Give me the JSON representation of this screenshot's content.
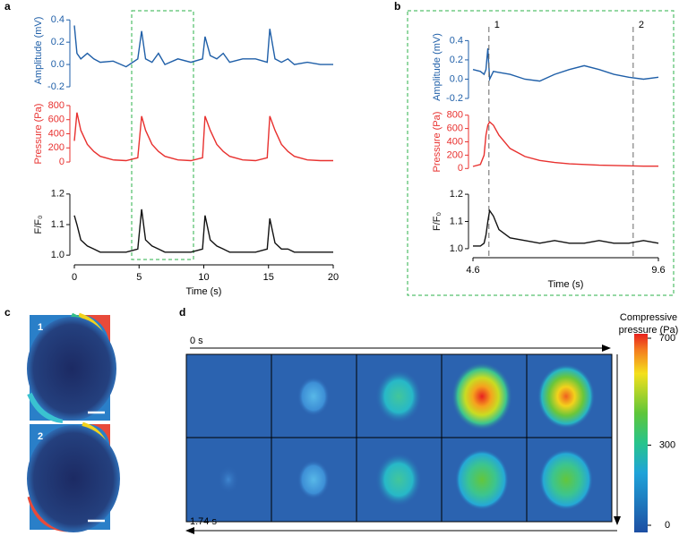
{
  "panel_labels": [
    "a",
    "b",
    "c",
    "d"
  ],
  "chart_data": [
    {
      "type": "line",
      "ylabel": "Amplitude (mV)",
      "color": "#1f5fa8",
      "xlim": [
        0,
        20
      ],
      "ylim": [
        -0.2,
        0.45
      ],
      "yticks": [
        -0.2,
        {
          "value": 0,
          "label": "0.0"
        },
        0.2,
        0.4
      ],
      "x": [
        0,
        0.2,
        0.5,
        1,
        1.5,
        2,
        3,
        4,
        4.9,
        5.2,
        5.5,
        6,
        6.5,
        7,
        8,
        9,
        9.9,
        10.1,
        10.5,
        11,
        11.5,
        12,
        13,
        14,
        14.9,
        15.1,
        15.5,
        16,
        16.5,
        17,
        18,
        19,
        20
      ],
      "values": [
        0.35,
        0.1,
        0.05,
        0.1,
        0.05,
        0.02,
        0.03,
        -0.02,
        0.05,
        0.3,
        0.05,
        0.02,
        0.1,
        0.0,
        0.05,
        0.02,
        0.05,
        0.25,
        0.08,
        0.05,
        0.1,
        0.02,
        0.05,
        0.05,
        0.02,
        0.32,
        0.05,
        0.02,
        0.05,
        0.0,
        0.02,
        0.0,
        0.0
      ]
    },
    {
      "type": "line",
      "ylabel": "Pressure (Pa)",
      "color": "#e8312f",
      "xlim": [
        0,
        20
      ],
      "ylim": [
        -50,
        850
      ],
      "yticks": [
        0,
        200,
        400,
        600,
        800
      ],
      "x": [
        0,
        0.2,
        0.5,
        1,
        1.5,
        2,
        3,
        4,
        4.9,
        5.2,
        5.5,
        6,
        6.5,
        7,
        8,
        9,
        9.9,
        10.1,
        10.5,
        11,
        11.5,
        12,
        13,
        14,
        14.9,
        15.1,
        15.5,
        16,
        16.5,
        17,
        18,
        19,
        20
      ],
      "values": [
        300,
        700,
        450,
        250,
        150,
        80,
        30,
        20,
        60,
        650,
        450,
        250,
        150,
        80,
        30,
        20,
        60,
        650,
        450,
        250,
        150,
        80,
        30,
        20,
        60,
        650,
        450,
        250,
        150,
        80,
        30,
        20,
        20
      ]
    },
    {
      "type": "line",
      "ylabel": "F/F₀",
      "color": "#111111",
      "xlim": [
        0,
        20
      ],
      "ylim": [
        0.98,
        1.22
      ],
      "yticks": [
        {
          "value": 1.0,
          "label": "1.0"
        },
        1.1,
        1.2
      ],
      "xticks": [
        0,
        5,
        10,
        15,
        20
      ],
      "xlabel": "Time (s)",
      "x": [
        0,
        0.2,
        0.5,
        1,
        1.5,
        2,
        3,
        4,
        4.9,
        5.2,
        5.5,
        6,
        6.5,
        7,
        8,
        9,
        9.9,
        10.1,
        10.5,
        11,
        11.5,
        12,
        13,
        14,
        14.9,
        15.1,
        15.5,
        16,
        16.5,
        17,
        18,
        19,
        20
      ],
      "values": [
        1.13,
        1.1,
        1.05,
        1.03,
        1.02,
        1.01,
        1.01,
        1.01,
        1.02,
        1.15,
        1.05,
        1.03,
        1.02,
        1.01,
        1.01,
        1.01,
        1.02,
        1.13,
        1.05,
        1.03,
        1.02,
        1.01,
        1.01,
        1.01,
        1.02,
        1.12,
        1.04,
        1.02,
        1.02,
        1.01,
        1.01,
        1.01,
        1.01
      ]
    },
    {
      "type": "line",
      "ylabel": "Amplitude (mV)",
      "color": "#1f5fa8",
      "xlim": [
        4.6,
        9.6
      ],
      "ylim": [
        -0.2,
        0.45
      ],
      "yticks": [
        -0.2,
        {
          "value": 0,
          "label": "0.0"
        },
        0.2,
        0.4
      ],
      "annotations": [
        {
          "label": "1",
          "x": 5.03
        },
        {
          "label": "2",
          "x": 8.92
        }
      ],
      "x": [
        4.6,
        4.8,
        4.9,
        4.95,
        5.0,
        5.05,
        5.15,
        5.3,
        5.6,
        6.0,
        6.4,
        6.8,
        7.2,
        7.6,
        8.0,
        8.4,
        8.8,
        9.2,
        9.6
      ],
      "values": [
        0.1,
        0.08,
        0.05,
        0.1,
        0.32,
        0.0,
        0.08,
        0.07,
        0.05,
        0.0,
        -0.02,
        0.05,
        0.1,
        0.14,
        0.1,
        0.05,
        0.02,
        0.0,
        0.02
      ]
    },
    {
      "type": "line",
      "ylabel": "Pressure (Pa)",
      "color": "#e8312f",
      "xlim": [
        4.6,
        9.6
      ],
      "ylim": [
        -50,
        850
      ],
      "yticks": [
        0,
        200,
        400,
        600,
        800
      ],
      "x": [
        4.6,
        4.8,
        4.9,
        4.95,
        5.0,
        5.05,
        5.15,
        5.3,
        5.6,
        6.0,
        6.4,
        6.8,
        7.2,
        7.6,
        8.0,
        8.4,
        8.8,
        9.2,
        9.6
      ],
      "values": [
        30,
        60,
        200,
        500,
        650,
        700,
        650,
        500,
        300,
        180,
        120,
        90,
        70,
        60,
        50,
        45,
        40,
        35,
        35
      ]
    },
    {
      "type": "line",
      "ylabel": "F/F₀",
      "color": "#111111",
      "xlim": [
        4.6,
        9.6
      ],
      "ylim": [
        0.98,
        1.22
      ],
      "yticks": [
        {
          "value": 1.0,
          "label": "1.0"
        },
        1.1,
        1.2
      ],
      "xticks": [
        4.6,
        9.6
      ],
      "xlabel": "Time (s)",
      "x": [
        4.6,
        4.8,
        4.9,
        4.95,
        5.0,
        5.05,
        5.15,
        5.3,
        5.6,
        6.0,
        6.4,
        6.8,
        7.2,
        7.6,
        8.0,
        8.4,
        8.8,
        9.2,
        9.6
      ],
      "values": [
        1.01,
        1.01,
        1.02,
        1.05,
        1.1,
        1.14,
        1.12,
        1.07,
        1.04,
        1.03,
        1.02,
        1.03,
        1.02,
        1.02,
        1.03,
        1.02,
        1.02,
        1.03,
        1.02
      ]
    }
  ],
  "panel_c": {
    "image_labels": [
      "1",
      "2"
    ]
  },
  "panel_d": {
    "start_time": "0 s",
    "end_time": "1.74 s",
    "colorbar": {
      "title_lines": [
        "Compressive",
        "pressure (Pa)"
      ],
      "lim": [
        0,
        700
      ],
      "ticks": [
        0,
        300,
        700
      ]
    }
  }
}
